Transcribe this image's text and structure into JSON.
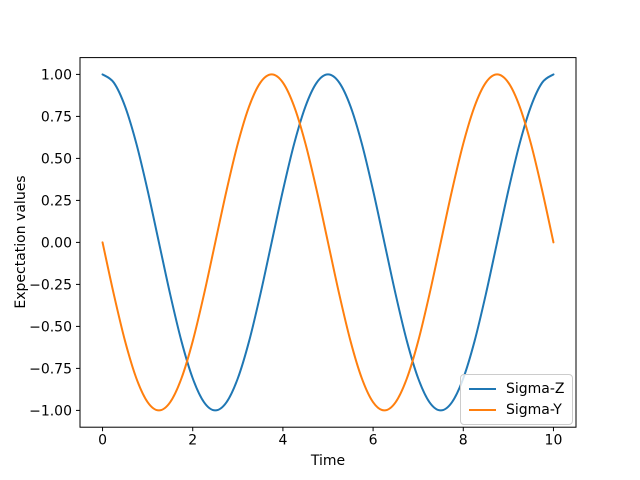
{
  "figure": {
    "background": "#ffffff"
  },
  "chart_data": {
    "type": "line",
    "title": "",
    "xlabel": "Time",
    "ylabel": "Expectation values",
    "xlim": [
      -0.5,
      10.5
    ],
    "ylim": [
      -1.1,
      1.1
    ],
    "grid": false,
    "axes_color": "#000000",
    "xticks": [
      0,
      2,
      4,
      6,
      8,
      10
    ],
    "xtick_labels": [
      "0",
      "2",
      "4",
      "6",
      "8",
      "10"
    ],
    "yticks": [
      -1.0,
      -0.75,
      -0.5,
      -0.25,
      0.0,
      0.25,
      0.5,
      0.75,
      1.0
    ],
    "ytick_labels": [
      "−1.00",
      "−0.75",
      "−0.50",
      "−0.25",
      "0.00",
      "0.25",
      "0.50",
      "0.75",
      "1.00"
    ],
    "x": [
      0,
      0.25,
      0.5,
      0.75,
      1,
      1.25,
      1.5,
      1.75,
      2,
      2.25,
      2.5,
      2.75,
      3,
      3.25,
      3.5,
      3.75,
      4,
      4.25,
      4.5,
      4.75,
      5,
      5.25,
      5.5,
      5.75,
      6,
      6.25,
      6.5,
      6.75,
      7,
      7.25,
      7.5,
      7.75,
      8,
      8.25,
      8.5,
      8.75,
      9,
      9.25,
      9.5,
      9.75,
      10
    ],
    "series": [
      {
        "name": "Sigma-Z",
        "color": "#1f77b4",
        "description": "cos(2*pi*t/5), period 5",
        "values": [
          1,
          0.951,
          0.809,
          0.588,
          0.309,
          0,
          -0.309,
          -0.588,
          -0.809,
          -0.951,
          -1,
          -0.951,
          -0.809,
          -0.588,
          -0.309,
          0,
          0.309,
          0.588,
          0.809,
          0.951,
          1,
          0.951,
          0.809,
          0.588,
          0.309,
          0,
          -0.309,
          -0.588,
          -0.809,
          -0.951,
          -1,
          -0.951,
          -0.809,
          -0.588,
          -0.309,
          0,
          0.309,
          0.588,
          0.809,
          0.951,
          1
        ]
      },
      {
        "name": "Sigma-Y",
        "color": "#ff7f0e",
        "description": "-sin(2*pi*t/5), period 5",
        "values": [
          0,
          -0.309,
          -0.588,
          -0.809,
          -0.951,
          -1,
          -0.951,
          -0.809,
          -0.588,
          -0.309,
          0,
          0.309,
          0.588,
          0.809,
          0.951,
          1,
          0.951,
          0.809,
          0.588,
          0.309,
          0,
          -0.309,
          -0.588,
          -0.809,
          -0.951,
          -1,
          -0.951,
          -0.809,
          -0.588,
          -0.309,
          0,
          0.309,
          0.588,
          0.809,
          0.951,
          1,
          0.951,
          0.809,
          0.588,
          0.309,
          0
        ]
      }
    ],
    "legend": {
      "position": "lower right",
      "entries": [
        "Sigma-Z",
        "Sigma-Y"
      ]
    }
  }
}
